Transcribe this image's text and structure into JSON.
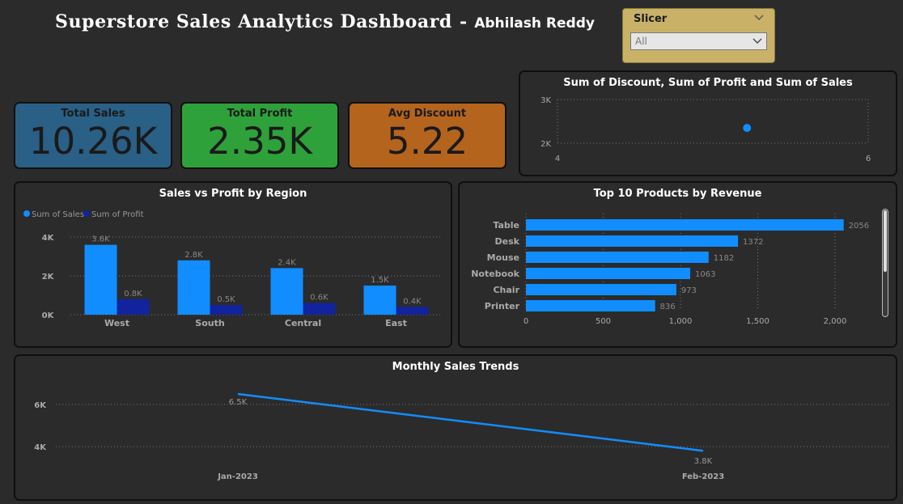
{
  "header": {
    "title": "Superstore Sales Analytics Dashboard",
    "separator": "-",
    "author": "Abhilash Reddy"
  },
  "slicer": {
    "title": "Slicer",
    "selected": "All",
    "icon": "chevron-down-icon"
  },
  "kpis": {
    "total_sales": {
      "label": "Total Sales",
      "value": "10.26K",
      "color": "#2a5f86"
    },
    "total_profit": {
      "label": "Total Profit",
      "value": "2.35K",
      "color": "#2fa13a"
    },
    "avg_discount": {
      "label": "Avg Discount",
      "value": "5.22",
      "color": "#b5641d"
    }
  },
  "panels": {
    "scatter_title": "Sum of Discount, Sum of Profit and Sum of Sales",
    "region_title": "Sales vs Profit by Region",
    "products_title": "Top 10 Products by Revenue",
    "monthly_title": "Monthly Sales Trends"
  },
  "colors": {
    "sales": "#118dff",
    "profit": "#12239e",
    "background": "#2b2b2b",
    "border": "#0f0f0f",
    "slicer": "#c9b268"
  },
  "chart_data": [
    {
      "id": "scatter",
      "type": "scatter",
      "title": "Sum of Discount, Sum of Profit and Sum of Sales",
      "x": [
        5.22
      ],
      "y": [
        2350
      ],
      "x_ticks": [
        "4",
        "6"
      ],
      "y_ticks": [
        "2K",
        "3K"
      ],
      "xlim": [
        4,
        6
      ],
      "ylim": [
        2000,
        3000
      ],
      "grid": true
    },
    {
      "id": "region",
      "type": "bar",
      "title": "Sales vs Profit by Region",
      "categories": [
        "West",
        "South",
        "Central",
        "East"
      ],
      "series": [
        {
          "name": "Sum of Sales",
          "values": [
            3600,
            2800,
            2400,
            1500
          ],
          "labels": [
            "3.6K",
            "2.8K",
            "2.4K",
            "1.5K"
          ]
        },
        {
          "name": "Sum of Profit",
          "values": [
            800,
            500,
            600,
            400
          ],
          "labels": [
            "0.8K",
            "0.5K",
            "0.6K",
            "0.4K"
          ]
        }
      ],
      "y_ticks": [
        "0K",
        "2K",
        "4K"
      ],
      "ylim": [
        0,
        4000
      ],
      "legend": "top-left",
      "grid": true
    },
    {
      "id": "products",
      "type": "bar",
      "orientation": "horizontal",
      "title": "Top 10 Products by Revenue",
      "categories": [
        "Table",
        "Desk",
        "Mouse",
        "Notebook",
        "Chair",
        "Printer"
      ],
      "values": [
        2056,
        1372,
        1182,
        1063,
        973,
        836
      ],
      "x_ticks": [
        "0",
        "500",
        "1,000",
        "1,500",
        "2,000"
      ],
      "xlim": [
        0,
        2000
      ],
      "grid": true
    },
    {
      "id": "monthly",
      "type": "line",
      "title": "Monthly Sales Trends",
      "x": [
        "Jan-2023",
        "Feb-2023"
      ],
      "y": [
        6500,
        3800
      ],
      "labels": [
        "6.5K",
        "3.8K"
      ],
      "y_ticks": [
        "4K",
        "6K"
      ],
      "ylim": [
        4000,
        6000
      ],
      "grid": true
    }
  ]
}
